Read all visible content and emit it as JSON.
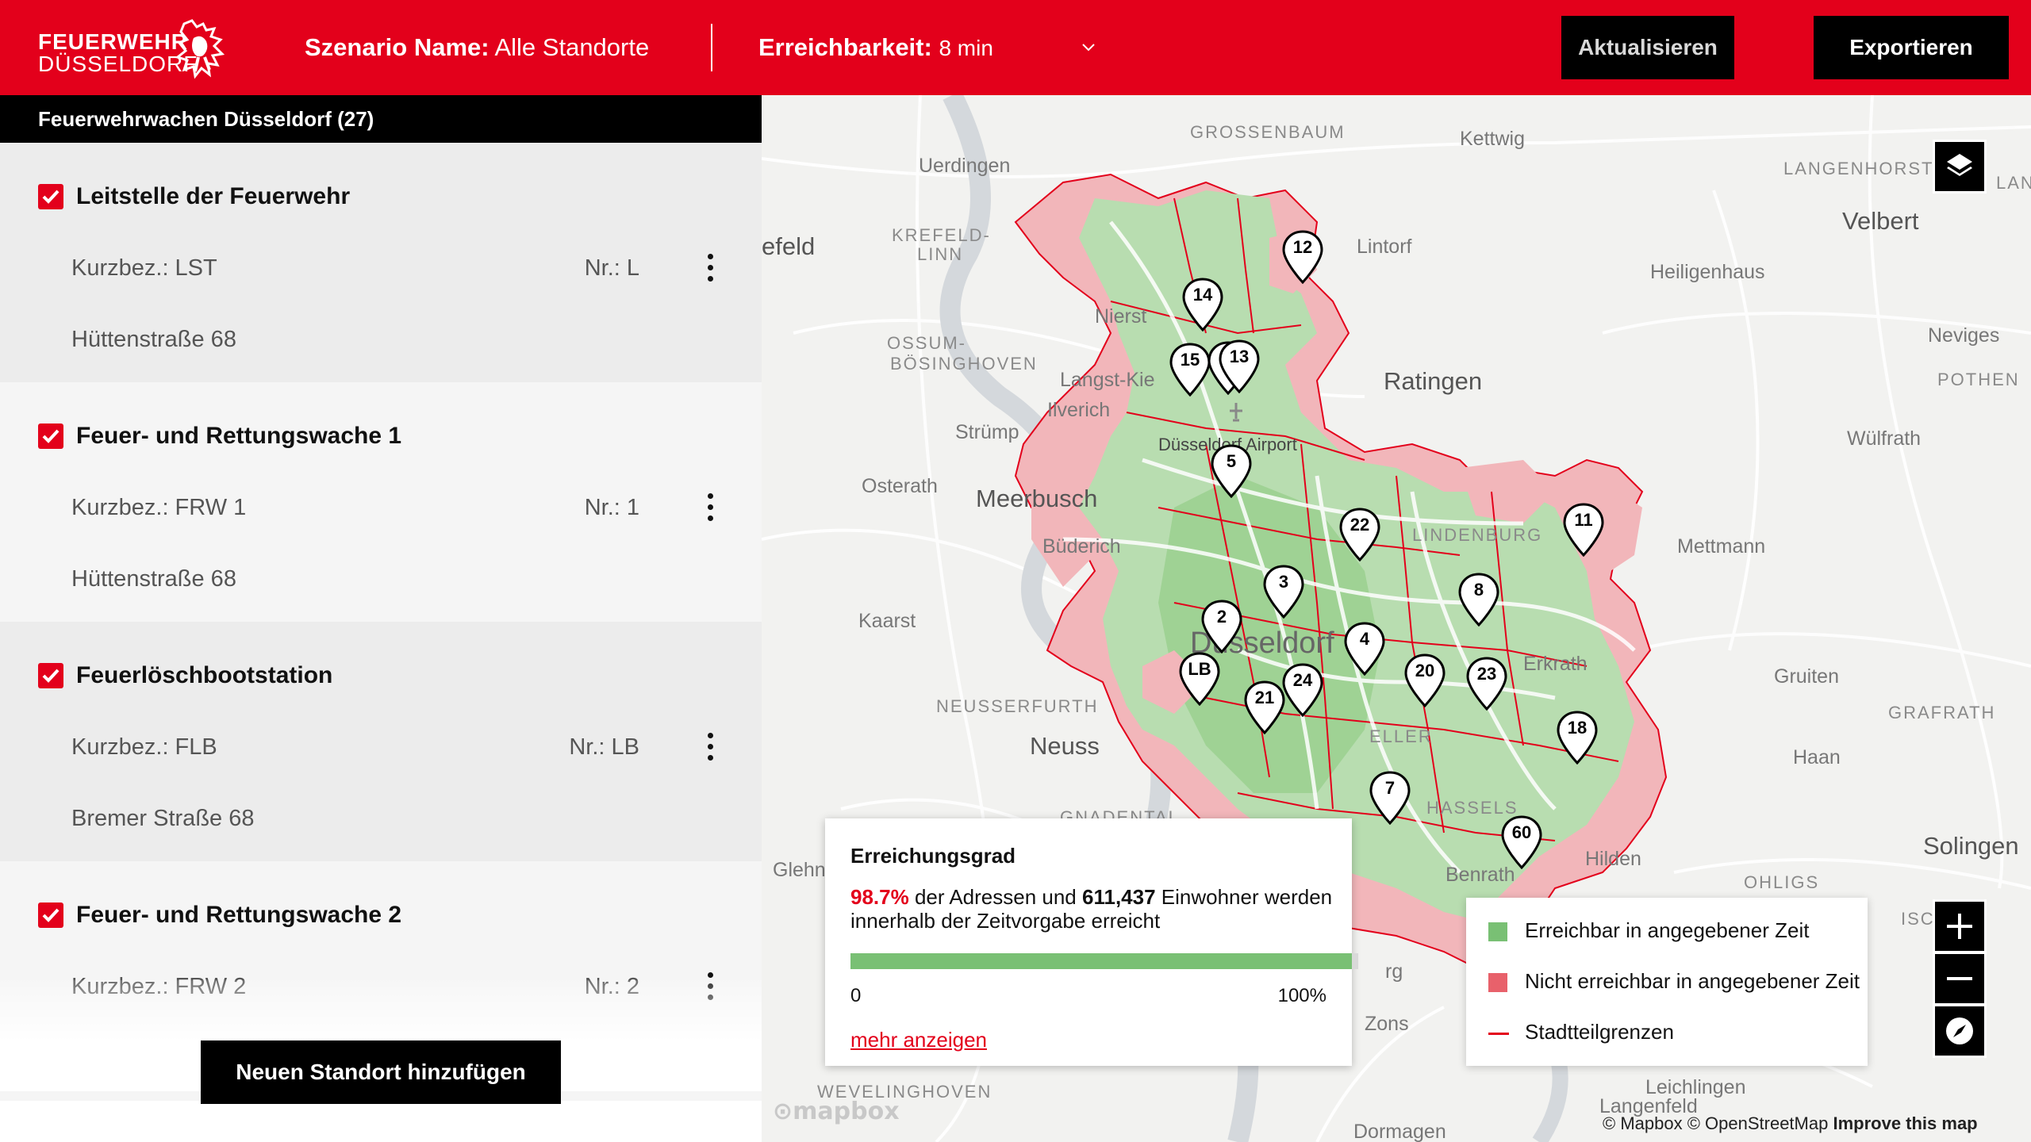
{
  "header": {
    "logo_line1": "FEUERWEHR",
    "logo_line2": "DÜSSELDORF",
    "scenario_label": "Szenario Name:",
    "scenario_value": "Alle Standorte",
    "reach_label": "Erreichbarkeit:",
    "reach_value": "8 min",
    "refresh_label": "Aktualisieren",
    "export_label": "Exportieren"
  },
  "sidebar": {
    "title": "Feuerwehrwachen Düsseldorf (27)",
    "stations": [
      {
        "name": "Leitstelle der Feuerwehr",
        "kurz": "Kurzbez.: LST",
        "nr": "Nr.: L",
        "address": "Hüttenstraße 68",
        "checked": true
      },
      {
        "name": "Feuer- und Rettungswache 1",
        "kurz": "Kurzbez.: FRW 1",
        "nr": "Nr.: 1",
        "address": "Hüttenstraße 68",
        "checked": true
      },
      {
        "name": "Feuerlöschbootstation",
        "kurz": "Kurzbez.: FLB",
        "nr": "Nr.: LB",
        "address": "Bremer Straße 68",
        "checked": true
      },
      {
        "name": "Feuer- und Rettungswache 2",
        "kurz": "Kurzbez.: FRW 2",
        "nr": "Nr.: 2",
        "address": "",
        "checked": true
      }
    ],
    "add_button": "Neuen Standort hinzufügen"
  },
  "map": {
    "places": {
      "grossenbaum": "GROSSENBAUM",
      "kettwig": "Kettwig",
      "uerdingen": "Uerdingen",
      "langenhorst": "LANGENHORST",
      "lan": "LAN",
      "feld": "efeld",
      "krefeld_linn": "KREFELD-",
      "krefeld_linn2": "LINN",
      "lintorf": "Lintorf",
      "velbert": "Velbert",
      "heiligenhaus": "Heiligenhaus",
      "nierst": "Nierst",
      "ossum": "OSSUM-",
      "ossum2": "BÖSINGHOVEN",
      "neviges": "Neviges",
      "pothen": "POTHEN",
      "langst": "Langst-Kie",
      "ratingen": "Ratingen",
      "ilverich": "Ilverich",
      "struemp": "Strümp",
      "airport": "Düsseldorf Airport",
      "wuelfrath": "Wülfrath",
      "osterath": "Osterath",
      "meerbusch": "Meerbusch",
      "buederich": "Büderich",
      "lindenburg": "LINDENBURG",
      "mettmann": "Mettmann",
      "kaarst": "Kaarst",
      "erkrath": "Erkrath",
      "gruiten": "Gruiten",
      "duesseldorf": "Düsseldorf",
      "neusserfurth": "NEUSSERFURTH",
      "graf": "GRAFRATH",
      "neuss": "Neuss",
      "haan": "Haan",
      "gnadental": "GNADENTAL",
      "glehn": "Glehn",
      "hilden": "Hilden",
      "solingen": "Solingen",
      "ohligs": "OHLIGS",
      "benrath": "Benrath",
      "eller": "ELLER",
      "hassels": "HASSELS",
      "zons": "Zons",
      "weveling": "WEVELINGHOVEN",
      "leichlingen": "Leichlingen",
      "langenfeld": "Langenfeld",
      "dormagen": "Dormagen",
      "berg": "rg",
      "isc": "ISC"
    },
    "pins": [
      "12",
      "14",
      "15",
      "5",
      "13",
      "5",
      "22",
      "11",
      "3",
      "8",
      "2",
      "4",
      "LB",
      "24",
      "20",
      "23",
      "21",
      "18",
      "7",
      "60"
    ],
    "result": {
      "title": "Erreichungsgrad",
      "percent": "98.7%",
      "text_mid": " der Adressen und ",
      "inhabitants": "611,437",
      "text_end": " Einwohner werden innerhalb der Zeitvorgabe erreicht",
      "progress": 0.987,
      "min_label": "0",
      "max_label": "100%",
      "link": "mehr anzeigen"
    },
    "legend": {
      "reachable": "Erreichbar in angegebener Zeit",
      "unreachable": "Nicht erreichbar in angegebener Zeit",
      "borders": "Stadtteilgrenzen"
    },
    "attribution": "© Mapbox © OpenStreetMap",
    "improve": "Improve this map",
    "mapbox": "mapbox",
    "colors": {
      "reachable": "#79c074",
      "unreachable": "#e8616b",
      "accent": "#e3001b"
    }
  }
}
